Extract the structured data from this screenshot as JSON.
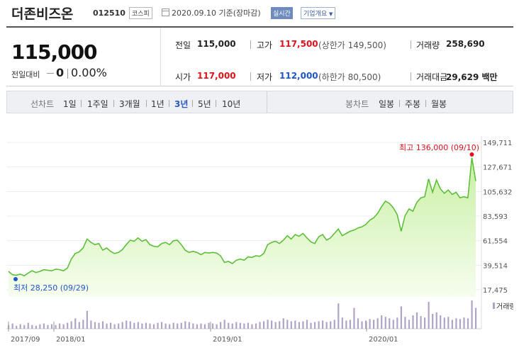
{
  "header": {
    "title": "더존비즈온",
    "code": "012510",
    "market": "코스피",
    "date": "2020.09.10 기준(장마감)",
    "realtime": "실시간",
    "company_info": "기업개요"
  },
  "summary": {
    "price": "115,000",
    "change_label": "전일대비",
    "change_value": "0",
    "change_pct": "0.00%",
    "prev_close_label": "전일",
    "prev_close": "115,000",
    "open_label": "시가",
    "open": "117,000",
    "high_label": "고가",
    "high": "117,500",
    "upper_limit": "(상한가 149,500)",
    "low_label": "저가",
    "low": "112,000",
    "lower_limit": "(하한가 80,500)",
    "volume_label": "거래량",
    "volume": "258,690",
    "amount_label": "거래대금",
    "amount": "29,629 백만"
  },
  "periods": {
    "line_label": "선차트",
    "line_items": [
      "1일",
      "1주일",
      "3개월",
      "1년",
      "3년",
      "5년",
      "10년"
    ],
    "selected": "3년",
    "candle_label": "봉차트",
    "candle_items": [
      "일봉",
      "주봉",
      "월봉"
    ]
  },
  "chart_data": {
    "type": "area",
    "ylim": [
      17475,
      149711
    ],
    "y_ticks": [
      "149,711",
      "127,671",
      "105,632",
      "83,593",
      "61,554",
      "39,514",
      "17,475"
    ],
    "x_ticks": [
      "2017/09",
      "2018/01",
      "2019/01",
      "2020/01"
    ],
    "high_annotation": "최고 136,000 (09/10)",
    "low_annotation": "최저 28,250 (09/29)",
    "volume_label": "거래량",
    "colors": {
      "line": "#5dbf3a",
      "fill_top": "#c9f0a3",
      "fill_bottom": "#f6fdef",
      "high": "#e0111b",
      "low": "#1f56c6",
      "volume": "#b0a4c6"
    },
    "prices": [
      34000,
      31000,
      30500,
      31500,
      30000,
      32500,
      34500,
      33000,
      34000,
      35500,
      35000,
      34500,
      36000,
      35500,
      34500,
      37000,
      45000,
      50000,
      51500,
      55000,
      63000,
      60000,
      58000,
      59000,
      53000,
      55000,
      52000,
      50000,
      51000,
      53500,
      58000,
      62000,
      61000,
      64000,
      61000,
      62500,
      58000,
      56500,
      56000,
      59000,
      60000,
      58000,
      61500,
      62000,
      58000,
      53000,
      51000,
      52000,
      51000,
      49000,
      51000,
      50500,
      51000,
      50500,
      48000,
      42000,
      43000,
      41000,
      44000,
      45000,
      44000,
      47000,
      46500,
      48000,
      47500,
      50000,
      58000,
      60000,
      61000,
      59000,
      62000,
      66000,
      63000,
      67000,
      65500,
      68000,
      64000,
      60500,
      59000,
      65000,
      67000,
      62000,
      64000,
      68000,
      72000,
      66000,
      68000,
      70000,
      71000,
      73000,
      74000,
      76000,
      80000,
      82000,
      86000,
      92000,
      97000,
      95000,
      91000,
      85000,
      70000,
      84000,
      90000,
      88000,
      96000,
      100000,
      101000,
      117000,
      105000,
      116000,
      108000,
      104000,
      107000,
      103000,
      105000,
      100000,
      101000,
      100000,
      136000,
      115000
    ],
    "volumes": [
      5,
      7,
      4,
      6,
      5,
      8,
      5,
      4,
      6,
      7,
      5,
      6,
      5,
      7,
      6,
      8,
      10,
      14,
      9,
      12,
      24,
      11,
      9,
      8,
      10,
      7,
      8,
      6,
      7,
      9,
      11,
      10,
      8,
      9,
      7,
      8,
      7,
      6,
      8,
      9,
      7,
      6,
      8,
      7,
      8,
      10,
      9,
      7,
      6,
      7,
      6,
      8,
      7,
      6,
      9,
      12,
      8,
      7,
      9,
      8,
      7,
      8,
      6,
      7,
      9,
      10,
      12,
      11,
      9,
      10,
      14,
      12,
      10,
      11,
      9,
      10,
      12,
      8,
      9,
      10,
      11,
      9,
      10,
      12,
      34,
      15,
      11,
      12,
      28,
      14,
      10,
      11,
      13,
      12,
      14,
      18,
      16,
      14,
      12,
      15,
      30,
      16,
      12,
      18,
      22,
      17,
      15,
      36,
      20,
      22,
      18,
      15,
      16,
      12,
      14,
      13,
      15,
      14,
      38,
      28
    ]
  }
}
